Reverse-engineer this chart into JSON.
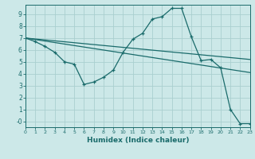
{
  "xlabel": "Humidex (Indice chaleur)",
  "bg_color": "#cce8e8",
  "line_color": "#1a6b6b",
  "grid_color": "#aacfcf",
  "xlim": [
    0,
    23
  ],
  "ylim": [
    -0.5,
    9.8
  ],
  "yticks": [
    0,
    1,
    2,
    3,
    4,
    5,
    6,
    7,
    8,
    9
  ],
  "ytick_labels": [
    "-0",
    "1",
    "2",
    "3",
    "4",
    "5",
    "6",
    "7",
    "8",
    "9"
  ],
  "lines": [
    {
      "x": [
        0,
        23
      ],
      "y": [
        7.0,
        5.2
      ],
      "marker": false
    },
    {
      "x": [
        0,
        23
      ],
      "y": [
        7.0,
        4.1
      ],
      "marker": false
    },
    {
      "x": [
        0,
        1,
        2,
        3,
        4,
        5,
        6,
        7,
        8,
        9,
        10,
        11,
        12,
        13,
        14,
        15,
        16,
        17,
        18,
        19,
        20,
        21,
        22,
        23
      ],
      "y": [
        7.0,
        6.7,
        6.3,
        5.8,
        5.0,
        4.8,
        3.1,
        3.3,
        3.7,
        4.3,
        5.8,
        6.9,
        7.4,
        8.6,
        8.8,
        9.5,
        9.5,
        7.1,
        5.1,
        5.2,
        4.5,
        1.0,
        -0.2,
        -0.2
      ],
      "marker": true
    }
  ]
}
